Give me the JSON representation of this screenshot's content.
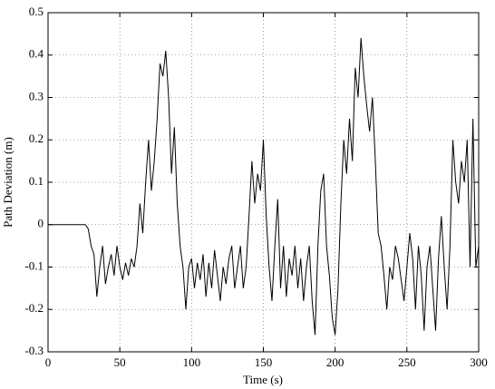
{
  "chart_data": {
    "type": "line",
    "x_label": "Time (s)",
    "y_label": "Path Deviation (m)",
    "x": [
      0,
      2,
      4,
      6,
      8,
      10,
      12,
      14,
      16,
      18,
      20,
      22,
      24,
      26,
      28,
      30,
      32,
      34,
      36,
      38,
      40,
      42,
      44,
      46,
      48,
      50,
      52,
      54,
      56,
      58,
      60,
      62,
      64,
      66,
      68,
      70,
      72,
      74,
      76,
      78,
      80,
      82,
      84,
      86,
      88,
      90,
      92,
      94,
      96,
      98,
      100,
      102,
      104,
      106,
      108,
      110,
      112,
      114,
      116,
      118,
      120,
      122,
      124,
      126,
      128,
      130,
      132,
      134,
      136,
      138,
      140,
      142,
      144,
      146,
      148,
      150,
      152,
      154,
      156,
      158,
      160,
      162,
      164,
      166,
      168,
      170,
      172,
      174,
      176,
      178,
      180,
      182,
      184,
      186,
      188,
      190,
      192,
      194,
      196,
      198,
      200,
      202,
      204,
      206,
      208,
      210,
      212,
      214,
      216,
      218,
      220,
      222,
      224,
      226,
      228,
      230,
      232,
      234,
      236,
      238,
      240,
      242,
      244,
      246,
      248,
      250,
      252,
      254,
      256,
      258,
      260,
      262,
      264,
      266,
      268,
      270,
      272,
      274,
      276,
      278,
      280,
      282,
      284,
      286,
      288,
      290,
      292,
      294,
      296,
      298,
      300
    ],
    "series": [
      {
        "name": "Path Deviation",
        "color": "#000000",
        "values": [
          0,
          0,
          0,
          0,
          0,
          0,
          0,
          0,
          0,
          0,
          0,
          0,
          0,
          0,
          -0.01,
          -0.05,
          -0.07,
          -0.17,
          -0.1,
          -0.05,
          -0.14,
          -0.1,
          -0.07,
          -0.12,
          -0.05,
          -0.1,
          -0.13,
          -0.09,
          -0.12,
          -0.08,
          -0.1,
          -0.05,
          0.05,
          -0.02,
          0.1,
          0.2,
          0.08,
          0.15,
          0.25,
          0.38,
          0.35,
          0.41,
          0.3,
          0.12,
          0.23,
          0.05,
          -0.05,
          -0.1,
          -0.2,
          -0.1,
          -0.08,
          -0.15,
          -0.09,
          -0.13,
          -0.07,
          -0.17,
          -0.09,
          -0.15,
          -0.06,
          -0.12,
          -0.18,
          -0.1,
          -0.14,
          -0.08,
          -0.05,
          -0.15,
          -0.1,
          -0.05,
          -0.15,
          -0.1,
          0.02,
          0.15,
          0.05,
          0.12,
          0.08,
          0.2,
          0.02,
          -0.1,
          -0.18,
          -0.05,
          0.06,
          -0.15,
          -0.05,
          -0.17,
          -0.08,
          -0.12,
          -0.05,
          -0.15,
          -0.08,
          -0.18,
          -0.1,
          -0.05,
          -0.18,
          -0.26,
          -0.05,
          0.08,
          0.12,
          -0.05,
          -0.12,
          -0.22,
          -0.26,
          -0.15,
          0.05,
          0.2,
          0.12,
          0.25,
          0.15,
          0.37,
          0.3,
          0.44,
          0.35,
          0.28,
          0.22,
          0.3,
          0.15,
          -0.02,
          -0.05,
          -0.12,
          -0.2,
          -0.1,
          -0.13,
          -0.05,
          -0.08,
          -0.13,
          -0.18,
          -0.1,
          -0.02,
          -0.08,
          -0.2,
          -0.05,
          -0.12,
          -0.25,
          -0.1,
          -0.05,
          -0.15,
          -0.25,
          -0.08,
          0.02,
          -0.1,
          -0.2,
          -0.05,
          0.2,
          0.1,
          0.05,
          0.15,
          0.1,
          0.2,
          -0.1,
          0.25,
          -0.1,
          -0.05
        ]
      }
    ],
    "xlim": [
      0,
      300
    ],
    "xticks": [
      0,
      50,
      100,
      150,
      200,
      250,
      300
    ],
    "ylim": [
      -0.3,
      0.5
    ],
    "yticks": [
      -0.3,
      -0.2,
      -0.1,
      0,
      0.1,
      0.2,
      0.3,
      0.4,
      0.5
    ],
    "grid": true
  }
}
